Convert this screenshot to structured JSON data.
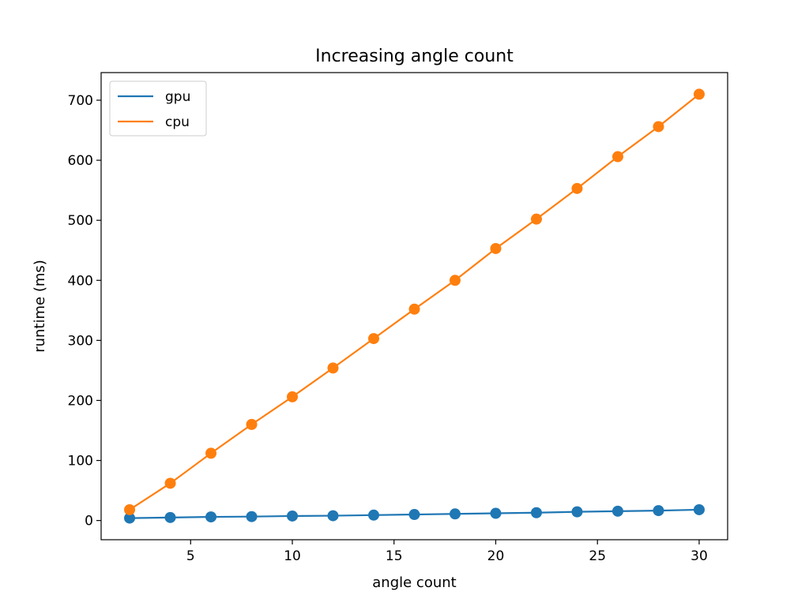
{
  "chart_data": {
    "type": "line",
    "title": "Increasing angle count",
    "xlabel": "angle count",
    "ylabel": "runtime (ms)",
    "xlim": [
      0.6,
      31.4
    ],
    "ylim": [
      -32,
      746
    ],
    "xticks": [
      5,
      10,
      15,
      20,
      25,
      30
    ],
    "yticks": [
      0,
      100,
      200,
      300,
      400,
      500,
      600,
      700
    ],
    "x": [
      2,
      4,
      6,
      8,
      10,
      12,
      14,
      16,
      18,
      20,
      22,
      24,
      26,
      28,
      30
    ],
    "series": [
      {
        "name": "gpu",
        "color": "#1f77b4",
        "values": [
          4,
          5,
          6,
          6.5,
          7.5,
          8,
          9,
          10,
          11,
          12,
          13,
          14.5,
          15.5,
          16.5,
          18
        ]
      },
      {
        "name": "cpu",
        "color": "#ff7f0e",
        "values": [
          18,
          62,
          112,
          160,
          206,
          254,
          303,
          352,
          400,
          453,
          502,
          553,
          606,
          656,
          710
        ]
      }
    ],
    "marker": "circle",
    "grid": false,
    "legend": "top-left"
  }
}
